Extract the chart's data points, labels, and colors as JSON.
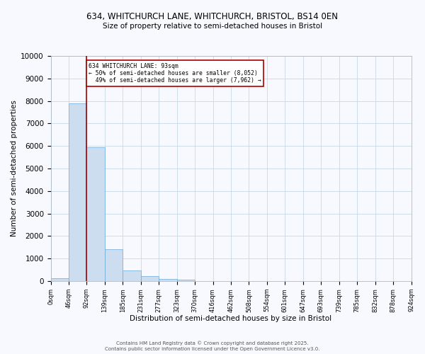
{
  "title_line1": "634, WHITCHURCH LANE, WHITCHURCH, BRISTOL, BS14 0EN",
  "title_line2": "Size of property relative to semi-detached houses in Bristol",
  "xlabel": "Distribution of semi-detached houses by size in Bristol",
  "ylabel": "Number of semi-detached properties",
  "bar_values": [
    130,
    7900,
    5950,
    1420,
    480,
    210,
    110,
    60,
    0,
    0,
    0,
    0,
    0,
    0,
    0,
    0,
    0,
    0,
    0,
    0
  ],
  "bin_labels": [
    "0sqm",
    "46sqm",
    "92sqm",
    "139sqm",
    "185sqm",
    "231sqm",
    "277sqm",
    "323sqm",
    "370sqm",
    "416sqm",
    "462sqm",
    "508sqm",
    "554sqm",
    "601sqm",
    "647sqm",
    "693sqm",
    "739sqm",
    "785sqm",
    "832sqm",
    "878sqm",
    "924sqm"
  ],
  "bar_color": "#ccddf0",
  "bar_edge_color": "#6baad8",
  "property_label": "634 WHITCHURCH LANE: 93sqm",
  "pct_smaller": 50,
  "pct_smaller_count": 8052,
  "pct_larger": 49,
  "pct_larger_count": 7962,
  "vline_color": "#aa0000",
  "vline_x_bin": 2,
  "annotation_box_color": "#aa0000",
  "ylim": [
    0,
    10000
  ],
  "yticks": [
    0,
    1000,
    2000,
    3000,
    4000,
    5000,
    6000,
    7000,
    8000,
    9000,
    10000
  ],
  "background_color": "#f8f8ff",
  "grid_color": "#c8d8e8",
  "footer_line1": "Contains HM Land Registry data © Crown copyright and database right 2025.",
  "footer_line2": "Contains public sector information licensed under the Open Government Licence v3.0."
}
